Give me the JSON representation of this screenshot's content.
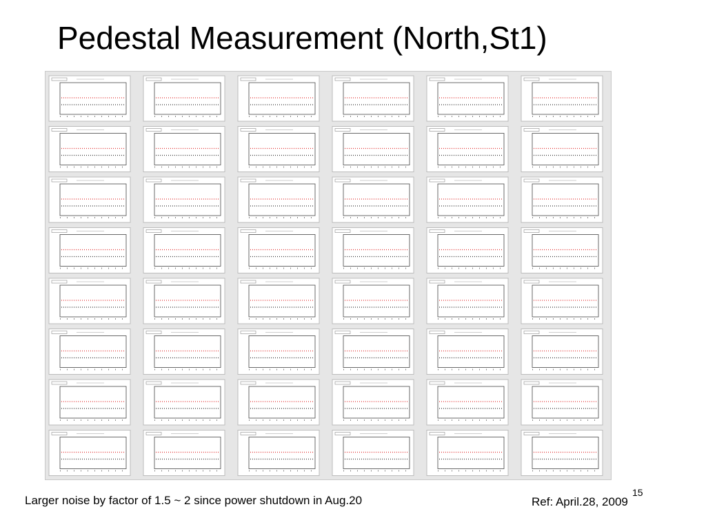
{
  "title": "Pedestal Measurement (North,St1)",
  "footnote": "Larger noise by factor of 1.5 ~ 2 since power shutdown in Aug.20",
  "reference": "Ref: April.28, 2009",
  "page_number": "15"
}
